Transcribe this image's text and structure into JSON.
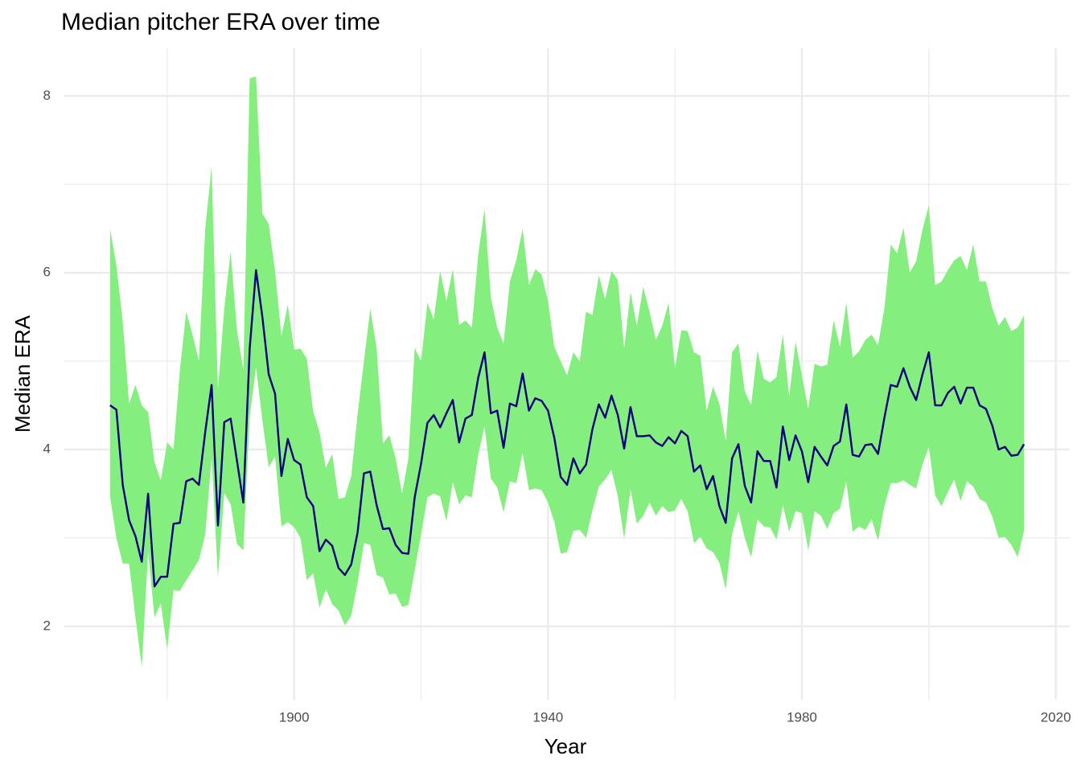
{
  "chart_data": {
    "type": "line",
    "title": "Median pitcher ERA over time",
    "xlabel": "Year",
    "ylabel": "Median ERA",
    "x": [
      1871,
      1872,
      1873,
      1874,
      1875,
      1876,
      1877,
      1878,
      1879,
      1880,
      1881,
      1882,
      1883,
      1884,
      1885,
      1886,
      1887,
      1888,
      1889,
      1890,
      1891,
      1892,
      1893,
      1894,
      1895,
      1896,
      1897,
      1898,
      1899,
      1900,
      1901,
      1902,
      1903,
      1904,
      1905,
      1906,
      1907,
      1908,
      1909,
      1910,
      1911,
      1912,
      1913,
      1914,
      1915,
      1916,
      1917,
      1918,
      1919,
      1920,
      1921,
      1922,
      1923,
      1924,
      1925,
      1926,
      1927,
      1928,
      1929,
      1930,
      1931,
      1932,
      1933,
      1934,
      1935,
      1936,
      1937,
      1938,
      1939,
      1940,
      1941,
      1942,
      1943,
      1944,
      1945,
      1946,
      1947,
      1948,
      1949,
      1950,
      1951,
      1952,
      1953,
      1954,
      1955,
      1956,
      1957,
      1958,
      1959,
      1960,
      1961,
      1962,
      1963,
      1964,
      1965,
      1966,
      1967,
      1968,
      1969,
      1970,
      1971,
      1972,
      1973,
      1974,
      1975,
      1976,
      1977,
      1978,
      1979,
      1980,
      1981,
      1982,
      1983,
      1984,
      1985,
      1986,
      1987,
      1988,
      1989,
      1990,
      1991,
      1992,
      1993,
      1994,
      1995,
      1996,
      1997,
      1998,
      1999,
      2000,
      2001,
      2002,
      2003,
      2004,
      2005,
      2006,
      2007,
      2008,
      2009,
      2010,
      2011,
      2012,
      2013,
      2014,
      2015
    ],
    "band": {
      "color": "#84ee7f",
      "upper": [
        6.5,
        6.08,
        5.45,
        4.52,
        4.73,
        4.5,
        4.42,
        3.86,
        3.65,
        4.08,
        4.0,
        4.9,
        5.56,
        5.3,
        5.0,
        6.5,
        7.2,
        4.68,
        5.6,
        6.24,
        5.35,
        4.9,
        8.2,
        8.22,
        6.67,
        6.55,
        6.02,
        5.28,
        5.64,
        5.13,
        5.14,
        5.03,
        4.43,
        4.2,
        3.79,
        3.95,
        3.44,
        3.46,
        3.7,
        4.4,
        5.0,
        5.59,
        5.15,
        4.07,
        4.16,
        3.9,
        3.5,
        3.9,
        5.15,
        5.0,
        5.66,
        5.47,
        6.02,
        5.68,
        6.04,
        5.41,
        5.46,
        5.38,
        6.2,
        6.72,
        5.72,
        5.38,
        5.2,
        5.9,
        6.14,
        6.5,
        5.86,
        6.04,
        5.98,
        5.68,
        5.16,
        5.0,
        4.84,
        5.1,
        5.0,
        5.56,
        5.52,
        5.97,
        5.7,
        6.02,
        5.92,
        5.14,
        5.78,
        5.4,
        5.84,
        5.56,
        5.24,
        5.4,
        5.66,
        4.92,
        5.35,
        5.34,
        5.1,
        5.06,
        4.44,
        4.71,
        4.52,
        4.1,
        5.1,
        5.2,
        4.66,
        4.5,
        5.12,
        4.8,
        4.76,
        4.82,
        5.3,
        4.6,
        5.22,
        4.84,
        4.46,
        4.97,
        4.94,
        4.96,
        5.46,
        5.16,
        5.66,
        5.04,
        5.11,
        5.24,
        5.3,
        5.18,
        5.6,
        6.32,
        6.22,
        6.51,
        6.0,
        6.13,
        6.49,
        6.76,
        5.86,
        5.9,
        6.03,
        6.14,
        6.19,
        6.03,
        6.32,
        5.9,
        5.9,
        5.6,
        5.4,
        5.5,
        5.34,
        5.38,
        5.52
      ],
      "lower": [
        3.47,
        3.0,
        2.71,
        2.71,
        2.1,
        1.54,
        2.84,
        2.1,
        2.26,
        1.74,
        2.41,
        2.4,
        2.52,
        2.63,
        2.75,
        3.04,
        3.9,
        2.55,
        3.51,
        3.38,
        2.93,
        2.86,
        4.37,
        4.93,
        4.33,
        3.8,
        3.92,
        3.13,
        3.18,
        3.12,
        3.0,
        2.52,
        2.6,
        2.21,
        2.42,
        2.25,
        2.18,
        2.01,
        2.12,
        2.49,
        2.94,
        2.92,
        2.58,
        2.55,
        2.36,
        2.37,
        2.22,
        2.24,
        2.63,
        3.04,
        3.46,
        3.5,
        3.47,
        3.19,
        3.63,
        3.38,
        3.48,
        3.46,
        3.94,
        4.26,
        3.67,
        3.57,
        3.29,
        3.64,
        3.62,
        3.96,
        3.54,
        3.56,
        3.54,
        3.4,
        3.18,
        2.82,
        2.84,
        3.08,
        3.09,
        3.0,
        3.31,
        3.58,
        3.66,
        3.77,
        3.47,
        2.99,
        3.55,
        3.16,
        3.25,
        3.4,
        3.25,
        3.36,
        3.29,
        3.31,
        3.44,
        3.3,
        2.94,
        3.01,
        2.88,
        2.84,
        2.72,
        2.42,
        3.04,
        3.3,
        3.0,
        2.78,
        3.21,
        3.13,
        3.12,
        2.98,
        3.37,
        3.07,
        3.3,
        3.28,
        2.86,
        3.3,
        3.25,
        3.1,
        3.28,
        3.33,
        3.64,
        3.07,
        3.13,
        3.09,
        3.21,
        2.97,
        3.36,
        3.62,
        3.62,
        3.65,
        3.6,
        3.56,
        3.83,
        4.03,
        3.48,
        3.36,
        3.52,
        3.66,
        3.42,
        3.64,
        3.58,
        3.44,
        3.4,
        3.24,
        3.0,
        3.01,
        2.92,
        2.78,
        3.08
      ]
    },
    "series": [
      {
        "color": "#000080",
        "values": [
          4.5,
          4.45,
          3.6,
          3.2,
          3.02,
          2.73,
          3.5,
          2.45,
          2.56,
          2.56,
          3.16,
          3.17,
          3.64,
          3.67,
          3.6,
          4.2,
          4.73,
          3.14,
          4.31,
          4.35,
          3.87,
          3.4,
          5.14,
          6.03,
          5.5,
          4.85,
          4.63,
          3.7,
          4.12,
          3.88,
          3.83,
          3.46,
          3.36,
          2.85,
          2.98,
          2.91,
          2.66,
          2.58,
          2.7,
          3.06,
          3.73,
          3.75,
          3.37,
          3.1,
          3.11,
          2.92,
          2.83,
          2.82,
          3.46,
          3.84,
          4.3,
          4.39,
          4.25,
          4.41,
          4.56,
          4.08,
          4.35,
          4.39,
          4.81,
          5.1,
          4.41,
          4.44,
          4.02,
          4.52,
          4.49,
          4.86,
          4.44,
          4.58,
          4.55,
          4.44,
          4.13,
          3.69,
          3.6,
          3.9,
          3.73,
          3.83,
          4.23,
          4.51,
          4.36,
          4.61,
          4.39,
          4.01,
          4.48,
          4.15,
          4.15,
          4.16,
          4.08,
          4.04,
          4.14,
          4.07,
          4.21,
          4.15,
          3.75,
          3.82,
          3.55,
          3.7,
          3.36,
          3.17,
          3.9,
          4.06,
          3.59,
          3.4,
          3.98,
          3.87,
          3.87,
          3.57,
          4.26,
          3.88,
          4.16,
          3.98,
          3.63,
          4.03,
          3.92,
          3.82,
          4.04,
          4.09,
          4.51,
          3.94,
          3.92,
          4.05,
          4.06,
          3.95,
          4.36,
          4.73,
          4.71,
          4.92,
          4.71,
          4.56,
          4.85,
          5.1,
          4.5,
          4.5,
          4.64,
          4.71,
          4.52,
          4.7,
          4.7,
          4.5,
          4.46,
          4.27,
          4.0,
          4.03,
          3.93,
          3.94,
          4.06
        ]
      }
    ],
    "xlim": [
      1863.8,
      2022.2
    ],
    "ylim": [
      1.17,
      8.54
    ],
    "xticks": [
      1900,
      1940,
      1980,
      2020
    ],
    "yticks": [
      2,
      4,
      6,
      8
    ],
    "minor_xticks": [
      1880,
      1920,
      1960,
      2000
    ],
    "minor_yticks": [
      3,
      5,
      7
    ],
    "grid": true
  }
}
